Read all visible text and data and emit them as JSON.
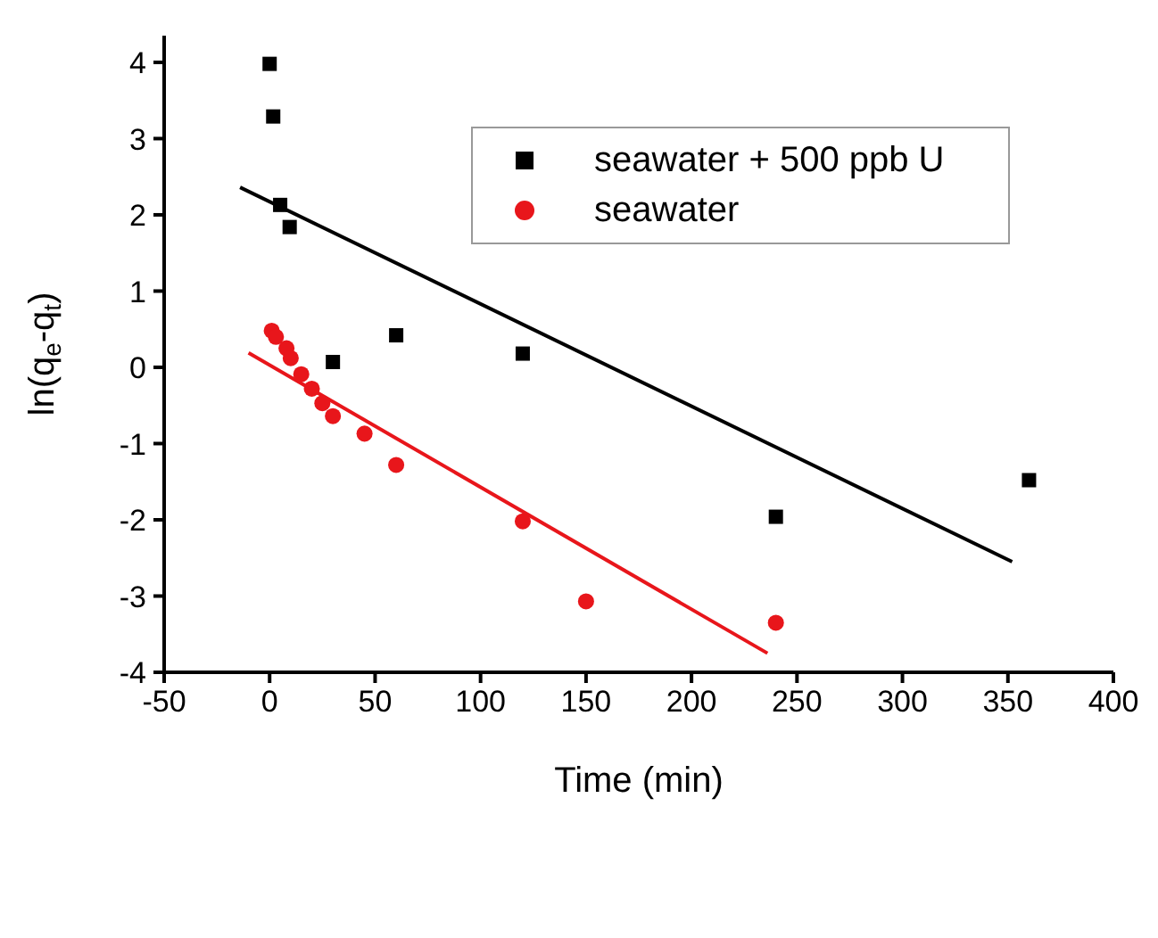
{
  "chart_data": {
    "type": "scatter",
    "xlabel": "Time (min)",
    "ylabel": "ln(q$_{e}$-q$_{t}$)",
    "xlim": [
      -50,
      400
    ],
    "xticks": [
      -50,
      0,
      50,
      100,
      150,
      200,
      250,
      300,
      350,
      400
    ],
    "ylim": [
      -4,
      4.35
    ],
    "yticks": [
      -4,
      -3,
      -2,
      -1,
      0,
      1,
      2,
      3,
      4
    ],
    "legend": "top right",
    "grid": false,
    "series": [
      {
        "name": "seawater + 500 ppb U",
        "color": "#000000",
        "marker": "square",
        "x": [
          0,
          1.7,
          5,
          9.5,
          30,
          60,
          120,
          240,
          360
        ],
        "values": [
          3.98,
          3.29,
          2.13,
          1.84,
          0.07,
          0.42,
          0.18,
          -1.96,
          -1.48
        ]
      },
      {
        "name": "seawater",
        "color": "#e8161b",
        "marker": "circle",
        "x": [
          1,
          3,
          8,
          10,
          15,
          20,
          25,
          30,
          45,
          60,
          120,
          150,
          240
        ],
        "values": [
          0.48,
          0.4,
          0.25,
          0.12,
          -0.09,
          -0.28,
          -0.47,
          -0.64,
          -0.87,
          -1.28,
          -2.02,
          -3.07,
          -3.35
        ]
      },
      {
        "type": "line",
        "color": "#000000",
        "marker": "none",
        "x": [
          -14,
          352
        ],
        "values": [
          2.36,
          -2.55
        ]
      },
      {
        "type": "line",
        "color": "#e8161b",
        "marker": "none",
        "x": [
          -10,
          236
        ],
        "values": [
          0.19,
          -3.75
        ]
      }
    ]
  }
}
